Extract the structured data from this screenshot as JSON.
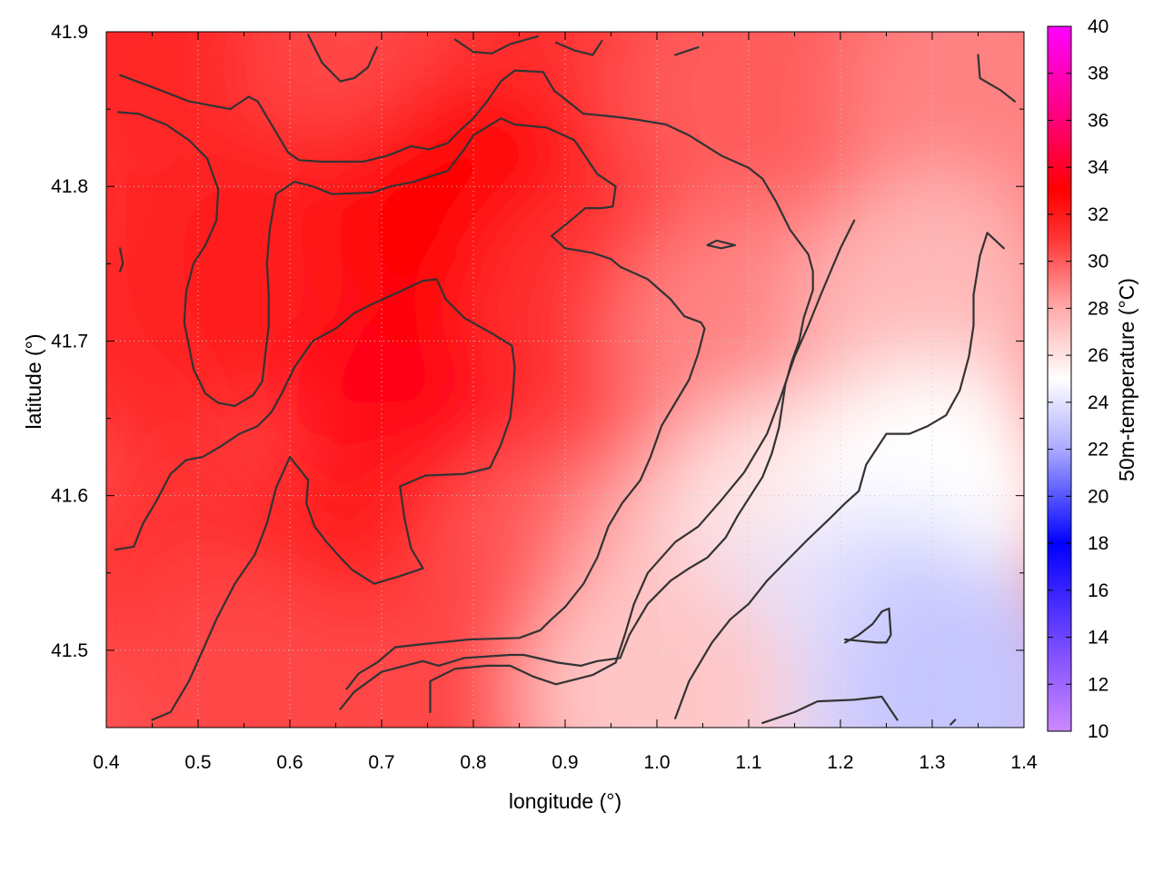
{
  "chart_data": {
    "type": "heatmap",
    "xlabel": "longitude (°)",
    "ylabel": "latitude (°)",
    "colorbar_label": "50m-temperature (°C)",
    "xlim": [
      0.4,
      1.4
    ],
    "ylim": [
      41.45,
      41.9
    ],
    "zlim": [
      10,
      40
    ],
    "x_ticks": [
      0.4,
      0.5,
      0.6,
      0.7,
      0.8,
      0.9,
      1.0,
      1.1,
      1.2,
      1.3,
      1.4
    ],
    "x_tick_labels": [
      "0.4",
      "0.5",
      "0.6",
      "0.7",
      "0.8",
      "0.9",
      "1.0",
      "1.1",
      "1.2",
      "1.3",
      "1.4"
    ],
    "y_ticks": [
      41.5,
      41.6,
      41.7,
      41.8,
      41.9
    ],
    "y_tick_labels": [
      "41.5",
      "41.6",
      "41.7",
      "41.8",
      "41.9"
    ],
    "colorbar_ticks": [
      10,
      12,
      14,
      16,
      18,
      20,
      22,
      24,
      26,
      28,
      30,
      32,
      34,
      36,
      38,
      40
    ],
    "colorbar_tick_labels": [
      "10",
      "12",
      "14",
      "16",
      "18",
      "20",
      "22",
      "24",
      "26",
      "28",
      "30",
      "32",
      "34",
      "36",
      "38",
      "40"
    ],
    "colormap": [
      {
        "value": 10,
        "color": "#cc88ff"
      },
      {
        "value": 13,
        "color": "#8855ff"
      },
      {
        "value": 18,
        "color": "#0000ff"
      },
      {
        "value": 22,
        "color": "#aaaaff"
      },
      {
        "value": 25,
        "color": "#ffffff"
      },
      {
        "value": 28,
        "color": "#ffaaaa"
      },
      {
        "value": 31,
        "color": "#ff3333"
      },
      {
        "value": 33,
        "color": "#ff0000"
      },
      {
        "value": 36,
        "color": "#ff0077"
      },
      {
        "value": 40,
        "color": "#ff00ff"
      }
    ],
    "grid": true,
    "temperature_field": [
      {
        "lon": 0.45,
        "lat": 41.88,
        "temp": 31.5
      },
      {
        "lon": 0.7,
        "lat": 41.87,
        "temp": 30.5
      },
      {
        "lon": 0.9,
        "lat": 41.88,
        "temp": 31.0
      },
      {
        "lon": 1.1,
        "lat": 41.86,
        "temp": 30.0
      },
      {
        "lon": 1.35,
        "lat": 41.86,
        "temp": 29.0
      },
      {
        "lon": 0.45,
        "lat": 41.72,
        "temp": 31.5
      },
      {
        "lon": 0.6,
        "lat": 41.75,
        "temp": 32.0
      },
      {
        "lon": 0.75,
        "lat": 41.65,
        "temp": 33.5
      },
      {
        "lon": 0.8,
        "lat": 41.78,
        "temp": 33.0
      },
      {
        "lon": 0.95,
        "lat": 41.72,
        "temp": 31.0
      },
      {
        "lon": 1.1,
        "lat": 41.7,
        "temp": 29.0
      },
      {
        "lon": 1.3,
        "lat": 41.72,
        "temp": 27.5
      },
      {
        "lon": 0.5,
        "lat": 41.55,
        "temp": 31.0
      },
      {
        "lon": 0.7,
        "lat": 41.55,
        "temp": 32.0
      },
      {
        "lon": 0.9,
        "lat": 41.55,
        "temp": 30.0
      },
      {
        "lon": 1.05,
        "lat": 41.55,
        "temp": 28.0
      },
      {
        "lon": 1.15,
        "lat": 41.58,
        "temp": 26.0
      },
      {
        "lon": 1.3,
        "lat": 41.6,
        "temp": 25.0
      },
      {
        "lon": 1.25,
        "lat": 41.5,
        "temp": 23.5
      },
      {
        "lon": 1.12,
        "lat": 41.48,
        "temp": 24.0
      },
      {
        "lon": 1.33,
        "lat": 41.47,
        "temp": 23.0
      },
      {
        "lon": 0.55,
        "lat": 41.47,
        "temp": 30.5
      },
      {
        "lon": 0.8,
        "lat": 41.47,
        "temp": 30.5
      },
      {
        "lon": 1.0,
        "lat": 41.47,
        "temp": 27.0
      }
    ],
    "contours": [
      [
        [
          0.415,
          41.872
        ],
        [
          0.46,
          41.862
        ],
        [
          0.49,
          41.855
        ],
        [
          0.535,
          41.85
        ],
        [
          0.555,
          41.858
        ],
        [
          0.565,
          41.855
        ],
        [
          0.58,
          41.84
        ],
        [
          0.598,
          41.822
        ],
        [
          0.61,
          41.817
        ],
        [
          0.635,
          41.816
        ],
        [
          0.655,
          41.816
        ],
        [
          0.68,
          41.816
        ],
        [
          0.707,
          41.82
        ],
        [
          0.732,
          41.826
        ],
        [
          0.752,
          41.824
        ],
        [
          0.772,
          41.828
        ],
        [
          0.785,
          41.836
        ],
        [
          0.8,
          41.844
        ],
        [
          0.815,
          41.855
        ],
        [
          0.83,
          41.868
        ],
        [
          0.845,
          41.875
        ],
        [
          0.876,
          41.874
        ],
        [
          0.888,
          41.862
        ],
        [
          0.92,
          41.847
        ],
        [
          0.955,
          41.845
        ],
        [
          0.98,
          41.843
        ],
        [
          1.01,
          41.84
        ],
        [
          1.035,
          41.833
        ],
        [
          1.07,
          41.82
        ],
        [
          1.1,
          41.812
        ],
        [
          1.115,
          41.805
        ],
        [
          1.13,
          41.79
        ],
        [
          1.145,
          41.772
        ],
        [
          1.165,
          41.756
        ],
        [
          1.17,
          41.745
        ],
        [
          1.17,
          41.733
        ],
        [
          1.16,
          41.715
        ],
        [
          1.155,
          41.7
        ],
        [
          1.147,
          41.687
        ],
        [
          1.14,
          41.672
        ],
        [
          1.137,
          41.66
        ],
        [
          1.133,
          41.644
        ],
        [
          1.125,
          41.627
        ],
        [
          1.115,
          41.612
        ],
        [
          1.102,
          41.6
        ],
        [
          1.088,
          41.587
        ],
        [
          1.075,
          41.573
        ],
        [
          1.055,
          41.56
        ],
        [
          1.035,
          41.553
        ],
        [
          1.015,
          41.545
        ],
        [
          0.99,
          41.53
        ],
        [
          0.97,
          41.51
        ],
        [
          0.96,
          41.495
        ],
        [
          0.935,
          41.493
        ],
        [
          0.917,
          41.49
        ],
        [
          0.892,
          41.492
        ],
        [
          0.855,
          41.497
        ],
        [
          0.84,
          41.497
        ],
        [
          0.79,
          41.495
        ],
        [
          0.762,
          41.49
        ],
        [
          0.745,
          41.493
        ],
        [
          0.7,
          41.486
        ],
        [
          0.67,
          41.473
        ],
        [
          0.655,
          41.462
        ]
      ],
      [
        [
          0.413,
          41.848
        ],
        [
          0.435,
          41.847
        ],
        [
          0.465,
          41.84
        ],
        [
          0.49,
          41.83
        ],
        [
          0.51,
          41.818
        ],
        [
          0.522,
          41.798
        ],
        [
          0.52,
          41.778
        ],
        [
          0.508,
          41.762
        ],
        [
          0.495,
          41.75
        ],
        [
          0.487,
          41.732
        ],
        [
          0.485,
          41.712
        ],
        [
          0.49,
          41.697
        ],
        [
          0.495,
          41.682
        ],
        [
          0.508,
          41.666
        ],
        [
          0.522,
          41.66
        ],
        [
          0.54,
          41.658
        ],
        [
          0.56,
          41.665
        ],
        [
          0.57,
          41.674
        ],
        [
          0.573,
          41.69
        ],
        [
          0.577,
          41.71
        ],
        [
          0.577,
          41.73
        ],
        [
          0.575,
          41.75
        ],
        [
          0.578,
          41.772
        ],
        [
          0.585,
          41.795
        ],
        [
          0.605,
          41.803
        ],
        [
          0.625,
          41.8
        ],
        [
          0.646,
          41.795
        ],
        [
          0.69,
          41.796
        ],
        [
          0.71,
          41.8
        ],
        [
          0.735,
          41.803
        ],
        [
          0.772,
          41.81
        ],
        [
          0.79,
          41.824
        ],
        [
          0.8,
          41.833
        ],
        [
          0.83,
          41.844
        ],
        [
          0.845,
          41.84
        ],
        [
          0.88,
          41.838
        ],
        [
          0.91,
          41.83
        ],
        [
          0.935,
          41.808
        ],
        [
          0.955,
          41.8
        ],
        [
          0.952,
          41.787
        ],
        [
          0.94,
          41.786
        ],
        [
          0.922,
          41.786
        ],
        [
          0.9,
          41.775
        ],
        [
          0.885,
          41.768
        ],
        [
          0.9,
          41.76
        ],
        [
          0.93,
          41.757
        ],
        [
          0.95,
          41.753
        ],
        [
          0.96,
          41.748
        ],
        [
          0.99,
          41.74
        ],
        [
          1.015,
          41.727
        ],
        [
          1.03,
          41.716
        ],
        [
          1.048,
          41.712
        ],
        [
          1.052,
          41.708
        ],
        [
          1.045,
          41.692
        ],
        [
          1.035,
          41.675
        ],
        [
          1.02,
          41.66
        ],
        [
          1.005,
          41.645
        ],
        [
          0.993,
          41.625
        ],
        [
          0.982,
          41.61
        ],
        [
          0.962,
          41.595
        ],
        [
          0.947,
          41.58
        ],
        [
          0.935,
          41.56
        ],
        [
          0.92,
          41.543
        ],
        [
          0.9,
          41.528
        ],
        [
          0.885,
          41.52
        ],
        [
          0.873,
          41.513
        ],
        [
          0.85,
          41.508
        ],
        [
          0.795,
          41.507
        ],
        [
          0.745,
          41.504
        ],
        [
          0.715,
          41.502
        ],
        [
          0.695,
          41.492
        ],
        [
          0.675,
          41.485
        ],
        [
          0.662,
          41.475
        ]
      ],
      [
        [
          0.41,
          41.565
        ],
        [
          0.43,
          41.567
        ],
        [
          0.44,
          41.582
        ],
        [
          0.455,
          41.597
        ],
        [
          0.47,
          41.614
        ],
        [
          0.487,
          41.623
        ],
        [
          0.505,
          41.625
        ],
        [
          0.525,
          41.632
        ],
        [
          0.545,
          41.64
        ],
        [
          0.565,
          41.645
        ],
        [
          0.58,
          41.654
        ],
        [
          0.592,
          41.667
        ],
        [
          0.605,
          41.683
        ],
        [
          0.625,
          41.7
        ],
        [
          0.65,
          41.708
        ],
        [
          0.67,
          41.718
        ],
        [
          0.69,
          41.724
        ],
        [
          0.72,
          41.732
        ],
        [
          0.745,
          41.739
        ],
        [
          0.76,
          41.74
        ],
        [
          0.77,
          41.727
        ],
        [
          0.79,
          41.715
        ],
        [
          0.82,
          41.705
        ],
        [
          0.842,
          41.697
        ],
        [
          0.845,
          41.683
        ],
        [
          0.843,
          41.665
        ],
        [
          0.84,
          41.65
        ],
        [
          0.83,
          41.633
        ],
        [
          0.818,
          41.618
        ],
        [
          0.79,
          41.614
        ],
        [
          0.748,
          41.613
        ],
        [
          0.72,
          41.606
        ],
        [
          0.725,
          41.585
        ],
        [
          0.732,
          41.566
        ],
        [
          0.745,
          41.553
        ],
        [
          0.72,
          41.548
        ],
        [
          0.692,
          41.543
        ],
        [
          0.668,
          41.552
        ],
        [
          0.655,
          41.56
        ],
        [
          0.64,
          41.57
        ],
        [
          0.627,
          41.58
        ],
        [
          0.618,
          41.595
        ],
        [
          0.62,
          41.61
        ],
        [
          0.6,
          41.625
        ],
        [
          0.585,
          41.605
        ],
        [
          0.575,
          41.582
        ],
        [
          0.562,
          41.562
        ],
        [
          0.54,
          41.543
        ],
        [
          0.52,
          41.52
        ],
        [
          0.505,
          41.5
        ],
        [
          0.49,
          41.48
        ],
        [
          0.47,
          41.46
        ],
        [
          0.45,
          41.455
        ]
      ],
      [
        [
          0.753,
          41.46
        ],
        [
          0.753,
          41.48
        ],
        [
          0.78,
          41.488
        ],
        [
          0.815,
          41.49
        ],
        [
          0.84,
          41.49
        ],
        [
          0.865,
          41.483
        ],
        [
          0.89,
          41.478
        ],
        [
          0.93,
          41.484
        ],
        [
          0.955,
          41.492
        ],
        [
          0.965,
          41.51
        ],
        [
          0.975,
          41.53
        ],
        [
          0.99,
          41.55
        ],
        [
          1.02,
          41.57
        ],
        [
          1.045,
          41.58
        ],
        [
          1.07,
          41.597
        ],
        [
          1.095,
          41.615
        ],
        [
          1.12,
          41.64
        ],
        [
          1.135,
          41.664
        ],
        [
          1.15,
          41.69
        ],
        [
          1.165,
          41.71
        ],
        [
          1.18,
          41.732
        ],
        [
          1.2,
          41.76
        ],
        [
          1.215,
          41.778
        ]
      ],
      [
        [
          1.02,
          41.456
        ],
        [
          1.035,
          41.48
        ],
        [
          1.06,
          41.505
        ],
        [
          1.08,
          41.52
        ],
        [
          1.1,
          41.53
        ],
        [
          1.12,
          41.545
        ],
        [
          1.14,
          41.557
        ],
        [
          1.165,
          41.572
        ],
        [
          1.188,
          41.585
        ],
        [
          1.205,
          41.595
        ],
        [
          1.22,
          41.603
        ],
        [
          1.228,
          41.62
        ],
        [
          1.25,
          41.64
        ],
        [
          1.275,
          41.64
        ],
        [
          1.295,
          41.645
        ],
        [
          1.315,
          41.652
        ],
        [
          1.33,
          41.668
        ],
        [
          1.34,
          41.69
        ],
        [
          1.345,
          41.71
        ],
        [
          1.345,
          41.73
        ],
        [
          1.352,
          41.755
        ],
        [
          1.36,
          41.77
        ],
        [
          1.378,
          41.76
        ]
      ],
      [
        [
          1.205,
          41.505
        ],
        [
          1.22,
          41.51
        ],
        [
          1.235,
          41.517
        ],
        [
          1.245,
          41.525
        ],
        [
          1.253,
          41.527
        ],
        [
          1.255,
          41.51
        ],
        [
          1.25,
          41.505
        ],
        [
          1.24,
          41.505
        ],
        [
          1.222,
          41.506
        ],
        [
          1.205,
          41.507
        ]
      ],
      [
        [
          1.115,
          41.453
        ],
        [
          1.15,
          41.46
        ],
        [
          1.175,
          41.467
        ],
        [
          1.215,
          41.468
        ],
        [
          1.245,
          41.47
        ],
        [
          1.262,
          41.455
        ]
      ],
      [
        [
          0.62,
          41.898
        ],
        [
          0.635,
          41.88
        ],
        [
          0.655,
          41.868
        ],
        [
          0.67,
          41.87
        ],
        [
          0.685,
          41.877
        ],
        [
          0.695,
          41.89
        ]
      ],
      [
        [
          0.78,
          41.895
        ],
        [
          0.8,
          41.887
        ],
        [
          0.82,
          41.886
        ],
        [
          0.84,
          41.892
        ],
        [
          0.87,
          41.897
        ]
      ],
      [
        [
          0.89,
          41.893
        ],
        [
          0.91,
          41.888
        ],
        [
          0.93,
          41.885
        ],
        [
          0.94,
          41.894
        ]
      ],
      [
        [
          1.02,
          41.885
        ],
        [
          1.045,
          41.89
        ]
      ],
      [
        [
          1.35,
          41.885
        ],
        [
          1.352,
          41.87
        ],
        [
          1.375,
          41.862
        ],
        [
          1.39,
          41.855
        ]
      ],
      [
        [
          0.415,
          41.76
        ],
        [
          0.418,
          41.75
        ],
        [
          0.415,
          41.745
        ]
      ],
      [
        [
          1.055,
          41.762
        ],
        [
          1.065,
          41.765
        ],
        [
          1.085,
          41.762
        ],
        [
          1.07,
          41.76
        ],
        [
          1.055,
          41.762
        ]
      ],
      [
        [
          1.32,
          41.452
        ],
        [
          1.325,
          41.455
        ]
      ]
    ]
  }
}
